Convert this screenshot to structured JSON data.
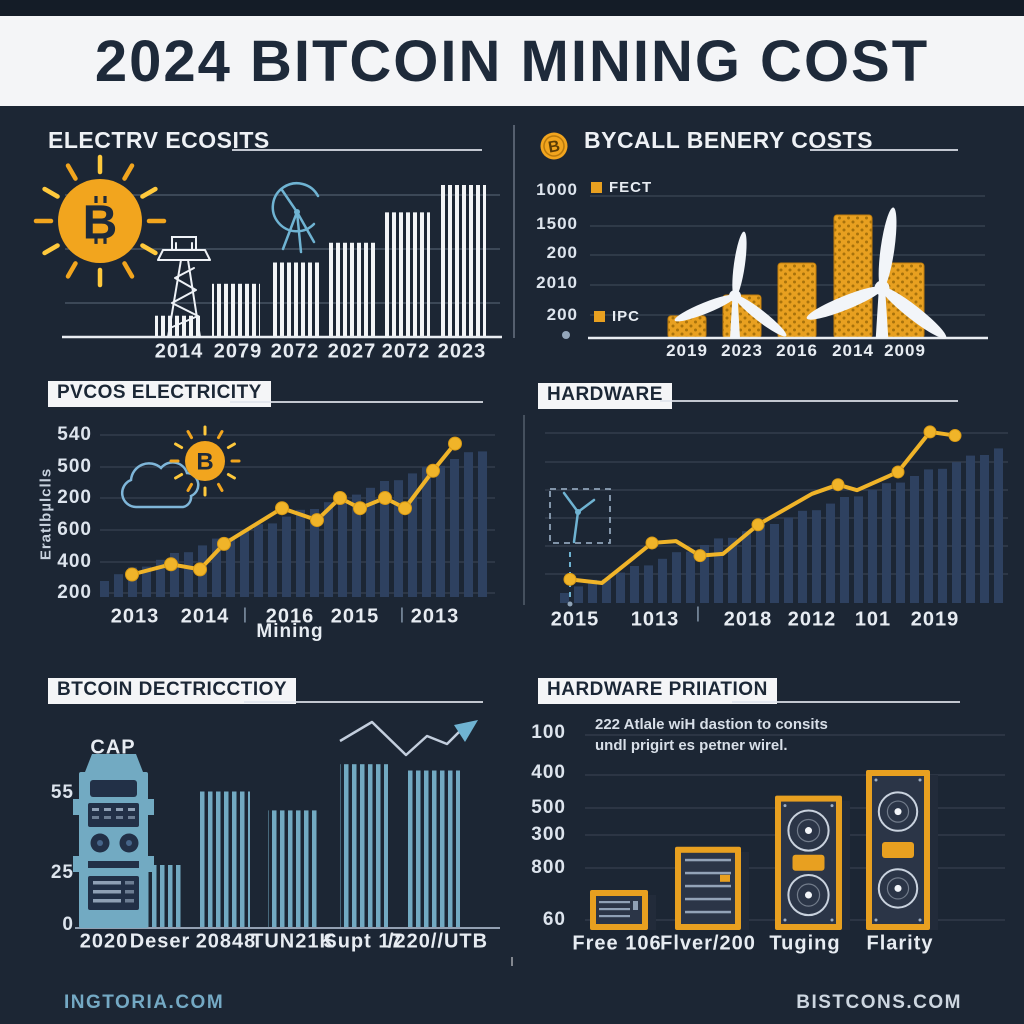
{
  "header": {
    "title": "2024 BITCOIN MINING COST"
  },
  "footer": {
    "left_brand": "INGTORIA.COM",
    "right_brand": "BISTCONS.COM"
  },
  "misc": {
    "separator": "|",
    "bitcoin_glyph": "B"
  },
  "colors": {
    "background": "#1c2634",
    "banner": "#f4f5f7",
    "ink": "#1e2a3a",
    "accent_orange": "#f2a51e",
    "coin_gold": "#e8a020",
    "line_yellow": "#f0b429",
    "bar_white": "#f2f4f6",
    "bar_steel_blue": "#72aac2",
    "bar_navy": "#2e4160",
    "sketch_teal": "#6fb3d2",
    "text_light": "#e7ecf2"
  },
  "chart_data": [
    {
      "id": "electricity-costs",
      "title": "ELECTRV ECOSITS",
      "type": "bar",
      "categories": [
        "2014",
        "2079",
        "2072",
        "2027",
        "2072",
        "2023"
      ],
      "values": [
        14,
        35,
        49,
        62,
        82,
        100
      ],
      "ylim": [
        0,
        100
      ],
      "grid": true,
      "bar_style": "white-striped",
      "icons": [
        "bitcoin-sun-icon",
        "transmission-tower-icon",
        "wind-turbine-sketch-icon"
      ]
    },
    {
      "id": "energy-costs",
      "title": "BYCALL BENERY COSTS",
      "type": "bar",
      "categories": [
        "2019",
        "2023",
        "2016",
        "2014",
        "2009"
      ],
      "values": [
        18,
        35,
        61,
        100,
        61
      ],
      "y_ticks": [
        "1000",
        "1500",
        "200",
        "2010",
        "200"
      ],
      "legend": [
        {
          "label": "FECT",
          "color": "#e8a020"
        },
        {
          "label": "IPC",
          "color": "#e8a020"
        }
      ],
      "grid": true,
      "bar_style": "gold-coin-stack",
      "icons": [
        "bitcoin-coin-icon",
        "wind-turbine-icon",
        "wind-turbine-icon"
      ]
    },
    {
      "id": "pvcos-electricity",
      "title": "PVCOS ELECTRICITY",
      "type": "line",
      "x_ticks": [
        "2013",
        "2014",
        "2016",
        "2015",
        "2013"
      ],
      "xlabel": "Mining",
      "ylabel": "Eratlbµlclls",
      "y_ticks": [
        "540",
        "500",
        "200",
        "600",
        "400",
        "200"
      ],
      "values": [
        15,
        21,
        18,
        33,
        54,
        47,
        60,
        54,
        60,
        54,
        76,
        92
      ],
      "grid": true,
      "line_color": "#f0b429",
      "icons": [
        "cloud-icon",
        "bitcoin-sun-icon"
      ]
    },
    {
      "id": "hardware",
      "title": "HARDWARE",
      "type": "line",
      "x_ticks": [
        "2015",
        "1013",
        "2018",
        "2012",
        "101",
        "2019"
      ],
      "values": [
        13,
        11,
        33,
        34,
        26,
        27,
        43,
        60,
        65,
        62,
        72,
        94,
        92
      ],
      "grid": true,
      "line_color": "#f0b429",
      "icons": [
        "wind-turbine-dashed-icon"
      ]
    },
    {
      "id": "btc-production",
      "title": "BTCOIN DECTRICCTIOY",
      "type": "bar",
      "categories": [
        "2020",
        "Deser",
        "20848",
        "TUN21K",
        "Supt 17",
        "/220//UTB"
      ],
      "values": [
        null,
        30,
        65,
        56,
        78,
        75
      ],
      "y_ticks": [
        "55",
        "25",
        "0"
      ],
      "annotation": "CAP",
      "bar_style": "blue-striped",
      "icons": [
        "mining-rig-icon",
        "zigzag-arrow-icon"
      ]
    },
    {
      "id": "hardware-priation",
      "title": "HARDWARE PRIIATION",
      "type": "pictorial",
      "categories": [
        "Free 106",
        "Flver/200",
        "Tuging",
        "Flarity"
      ],
      "values": [
        25,
        52,
        84,
        100
      ],
      "y_ticks": [
        "100",
        "400",
        "500",
        "300",
        "800",
        "60"
      ],
      "annotation_lines": [
        "222 Atlale wiH dastion to consits",
        "undl prigirt es petner wirel."
      ],
      "icons": [
        "asic-miner-small-icon",
        "asic-miner-medium-icon",
        "asic-miner-large-icon",
        "asic-miner-xlarge-icon"
      ]
    }
  ]
}
